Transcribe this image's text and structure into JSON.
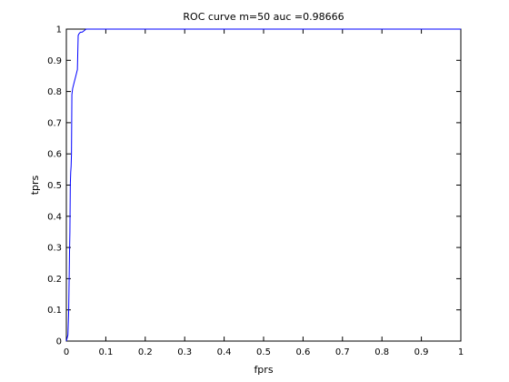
{
  "chart_data": {
    "type": "line",
    "title": "ROC curve m=50 auc =0.98666",
    "xlabel": "fprs",
    "ylabel": "tprs",
    "xlim": [
      0,
      1
    ],
    "ylim": [
      0,
      1
    ],
    "xticks": [
      0,
      0.1,
      0.2,
      0.3,
      0.4,
      0.5,
      0.6,
      0.7,
      0.8,
      0.9,
      1
    ],
    "yticks": [
      0,
      0.1,
      0.2,
      0.3,
      0.4,
      0.5,
      0.6,
      0.7,
      0.8,
      0.9,
      1
    ],
    "xtick_labels": [
      "0",
      "0.1",
      "0.2",
      "0.3",
      "0.4",
      "0.5",
      "0.6",
      "0.7",
      "0.8",
      "0.9",
      "1"
    ],
    "ytick_labels": [
      "0",
      "0.1",
      "0.2",
      "0.3",
      "0.4",
      "0.5",
      "0.6",
      "0.7",
      "0.8",
      "0.9",
      "1"
    ],
    "grid": false,
    "legend": "none",
    "series": [
      {
        "color": "#0000ff",
        "x": [
          0,
          0.002,
          0.004,
          0.006,
          0.008,
          0.009,
          0.01,
          0.011,
          0.012,
          0.013,
          0.014,
          0.016,
          0.018,
          0.02,
          0.022,
          0.024,
          0.026,
          0.028,
          0.03,
          0.032,
          0.034,
          0.036,
          0.038,
          0.04,
          0.045,
          0.05,
          0.055,
          0.06,
          0.08,
          0.1,
          0.2,
          0.4,
          0.6,
          0.8,
          1.0
        ],
        "y": [
          0,
          0.01,
          0.02,
          0.1,
          0.28,
          0.35,
          0.5,
          0.54,
          0.56,
          0.6,
          0.79,
          0.81,
          0.82,
          0.83,
          0.84,
          0.85,
          0.86,
          0.87,
          0.98,
          0.985,
          0.988,
          0.99,
          0.99,
          0.99,
          0.995,
          1.0,
          1.0,
          1.0,
          1.0,
          1.0,
          1.0,
          1.0,
          1.0,
          1.0,
          1.0
        ]
      }
    ]
  }
}
